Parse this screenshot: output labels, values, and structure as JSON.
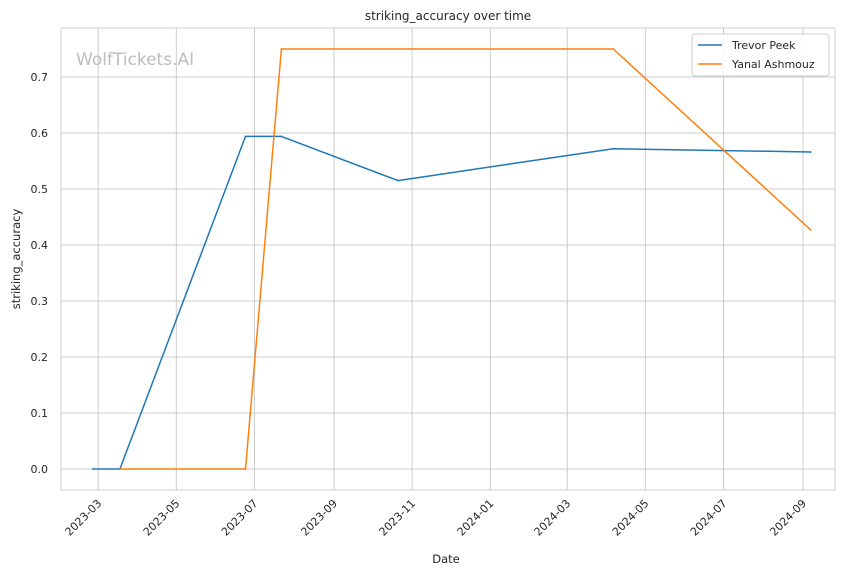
{
  "chart_data": {
    "type": "line",
    "title": "striking_accuracy over time",
    "xlabel": "Date",
    "ylabel": "striking_accuracy",
    "watermark": "WolfTickets.AI",
    "x_ticks": [
      "2023-03",
      "2023-05",
      "2023-07",
      "2023-09",
      "2023-11",
      "2024-01",
      "2024-03",
      "2024-05",
      "2024-07",
      "2024-09"
    ],
    "y_ticks": [
      "0.0",
      "0.1",
      "0.2",
      "0.3",
      "0.4",
      "0.5",
      "0.6",
      "0.7"
    ],
    "ylim": [
      -0.0375,
      0.7875
    ],
    "xlim": [
      "2023-01-31",
      "2024-09-26"
    ],
    "grid": true,
    "legend_position": "top-right",
    "series": [
      {
        "name": "Trevor Peek",
        "color": "#1f77b4",
        "points": [
          {
            "x": "2023-02-25",
            "y": 0.0
          },
          {
            "x": "2023-03-18",
            "y": 0.0
          },
          {
            "x": "2023-06-24",
            "y": 0.594
          },
          {
            "x": "2023-07-22",
            "y": 0.594
          },
          {
            "x": "2023-10-21",
            "y": 0.515
          },
          {
            "x": "2024-04-06",
            "y": 0.572
          },
          {
            "x": "2024-09-07",
            "y": 0.566
          }
        ]
      },
      {
        "name": "Yanal Ashmouz",
        "color": "#ff7f0e",
        "points": [
          {
            "x": "2023-03-18",
            "y": 0.0
          },
          {
            "x": "2023-06-24",
            "y": 0.0
          },
          {
            "x": "2023-07-22",
            "y": 0.75
          },
          {
            "x": "2024-04-06",
            "y": 0.75
          },
          {
            "x": "2024-09-07",
            "y": 0.427
          }
        ]
      }
    ]
  }
}
